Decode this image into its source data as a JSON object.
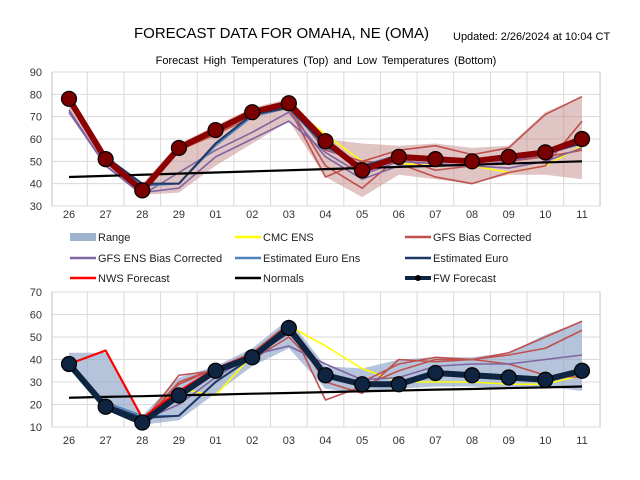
{
  "header": {
    "title": "FORECAST DATA FOR OMAHA, NE (OMA)",
    "updated": "Updated: 2/26/2024 at 10:04 CT",
    "subtitle": "Forecast High Temperatures (Top)  and  Low Temperatures (Bottom)"
  },
  "colors": {
    "Range": "#9fb3cf",
    "CMC ENS": "#ffff00",
    "GFS Bias Corrected": "#c0504d",
    "GFS ENS Bias Corrected": "#8064a2",
    "Estimated Euro Ens": "#4f81bd",
    "Estimated Euro": "#1f3864",
    "NWS Forecast": "#ff0000",
    "Normals": "#000000",
    "FW Forecast": "#0f2440"
  },
  "legend": [
    "Range",
    "CMC ENS",
    "GFS Bias Corrected",
    "GFS ENS Bias Corrected",
    "Estimated Euro Ens",
    "Estimated Euro",
    "NWS Forecast",
    "Normals",
    "FW Forecast"
  ],
  "chart_data": [
    {
      "type": "line",
      "title": "Forecast High Temperatures",
      "categories": [
        "26",
        "27",
        "28",
        "29",
        "01",
        "02",
        "03",
        "04",
        "05",
        "06",
        "07",
        "08",
        "09",
        "10",
        "11"
      ],
      "ylim": [
        30,
        90
      ],
      "yticks": [
        30,
        40,
        50,
        60,
        70,
        80,
        90
      ],
      "grid": true,
      "range": {
        "high": [
          79,
          53,
          40,
          58,
          66,
          74,
          78,
          60,
          58,
          57,
          58,
          56,
          57,
          72,
          79
        ],
        "low": [
          71,
          48,
          35,
          36,
          48,
          58,
          68,
          43,
          34,
          44,
          42,
          40,
          44,
          44,
          42
        ]
      },
      "series": [
        {
          "name": "CMC ENS",
          "values": [
            78,
            52,
            38,
            55,
            62,
            70,
            75,
            62,
            50,
            49,
            48,
            48,
            45,
            48,
            57
          ]
        },
        {
          "name": "GFS Bias Corrected",
          "values": [
            77,
            50,
            37,
            56,
            63,
            71,
            75,
            55,
            50,
            55,
            57,
            53,
            56,
            71,
            79
          ]
        },
        {
          "name": "GFS Bias Corrected",
          "values": [
            77,
            50,
            38,
            55,
            62,
            70,
            74,
            43,
            50,
            49,
            43,
            40,
            45,
            48,
            68
          ]
        },
        {
          "name": "GFS Bias Corrected",
          "values": [
            76,
            50,
            36,
            55,
            62,
            72,
            75,
            48,
            38,
            52,
            46,
            48,
            50,
            52,
            55
          ]
        },
        {
          "name": "GFS ENS Bias Corrected",
          "values": [
            73,
            48,
            35,
            45,
            55,
            63,
            72,
            52,
            42,
            48,
            48,
            48,
            47,
            50,
            56
          ]
        },
        {
          "name": "GFS ENS Bias Corrected",
          "values": [
            72,
            48,
            36,
            38,
            52,
            60,
            68,
            54,
            44,
            50,
            49,
            48,
            50,
            53,
            58
          ]
        },
        {
          "name": "Estimated Euro Ens",
          "values": [
            77,
            52,
            39,
            40,
            57,
            70,
            74,
            56,
            48,
            53,
            50,
            50,
            52,
            54,
            58
          ]
        },
        {
          "name": "Estimated Euro",
          "values": [
            77,
            52,
            40,
            40,
            58,
            71,
            74,
            57,
            48,
            52,
            50,
            50,
            52,
            54,
            58
          ]
        },
        {
          "name": "NWS Forecast",
          "values": [
            78,
            51,
            37,
            56,
            64,
            72,
            76,
            59,
            46,
            52,
            null,
            null,
            null,
            null,
            null
          ]
        },
        {
          "name": "Normals",
          "values": [
            43,
            43.5,
            44,
            44.5,
            45,
            45.5,
            46,
            46.5,
            47,
            47.5,
            48,
            48.5,
            49,
            49.5,
            50
          ]
        },
        {
          "name": "FW Forecast",
          "values": [
            78,
            51,
            37,
            56,
            64,
            72,
            76,
            59,
            46,
            52,
            51,
            50,
            52,
            54,
            60
          ]
        }
      ]
    },
    {
      "type": "line",
      "title": "Forecast Low Temperatures",
      "categories": [
        "26",
        "27",
        "28",
        "29",
        "01",
        "02",
        "03",
        "04",
        "05",
        "06",
        "07",
        "08",
        "09",
        "10",
        "11"
      ],
      "ylim": [
        10,
        70
      ],
      "yticks": [
        10,
        20,
        30,
        40,
        50,
        60,
        70
      ],
      "grid": true,
      "range": {
        "high": [
          43,
          43,
          15,
          32,
          37,
          45,
          58,
          37,
          36,
          40,
          41,
          41,
          43,
          51,
          57
        ],
        "low": [
          37,
          18,
          11,
          13,
          25,
          37,
          45,
          27,
          25,
          27,
          28,
          28,
          27,
          28,
          26
        ]
      },
      "series": [
        {
          "name": "CMC ENS",
          "values": [
            38,
            20,
            13,
            27,
            24,
            42,
            55,
            46,
            36,
            30,
            30,
            30,
            29,
            29,
            33
          ]
        },
        {
          "name": "GFS Bias Corrected",
          "values": [
            38,
            20,
            12,
            30,
            36,
            43,
            56,
            22,
            28,
            35,
            40,
            40,
            43,
            50,
            57
          ]
        },
        {
          "name": "GFS Bias Corrected",
          "values": [
            38,
            20,
            12,
            29,
            36,
            42,
            55,
            30,
            25,
            40,
            39,
            40,
            42,
            45,
            53
          ]
        },
        {
          "name": "GFS Bias Corrected",
          "values": [
            37,
            19,
            12,
            33,
            35,
            40,
            50,
            33,
            30,
            38,
            41,
            40,
            38,
            33,
            32
          ]
        },
        {
          "name": "GFS ENS Bias Corrected",
          "values": [
            38,
            18,
            13,
            20,
            32,
            42,
            46,
            38,
            31,
            32,
            37,
            38,
            38,
            40,
            42
          ]
        },
        {
          "name": "Estimated Euro Ens",
          "values": [
            37,
            21,
            15,
            15,
            30,
            41,
            52,
            34,
            30,
            30,
            35,
            34,
            33,
            32,
            36
          ]
        },
        {
          "name": "Estimated Euro",
          "values": [
            37,
            20,
            14,
            15,
            30,
            41,
            52,
            33,
            29,
            30,
            34,
            33,
            32,
            31,
            35
          ]
        },
        {
          "name": "NWS Forecast",
          "values": [
            38,
            44,
            14,
            26,
            36,
            42,
            53,
            null,
            null,
            null,
            null,
            null,
            null,
            null,
            null
          ]
        },
        {
          "name": "Normals",
          "values": [
            23,
            23.4,
            23.7,
            24.1,
            24.4,
            24.8,
            25.1,
            25.5,
            25.9,
            26.2,
            26.6,
            26.9,
            27.3,
            27.6,
            28
          ]
        },
        {
          "name": "FW Forecast",
          "values": [
            38,
            19,
            12,
            24,
            35,
            41,
            54,
            33,
            29,
            29,
            34,
            33,
            32,
            31,
            35
          ]
        }
      ]
    }
  ]
}
